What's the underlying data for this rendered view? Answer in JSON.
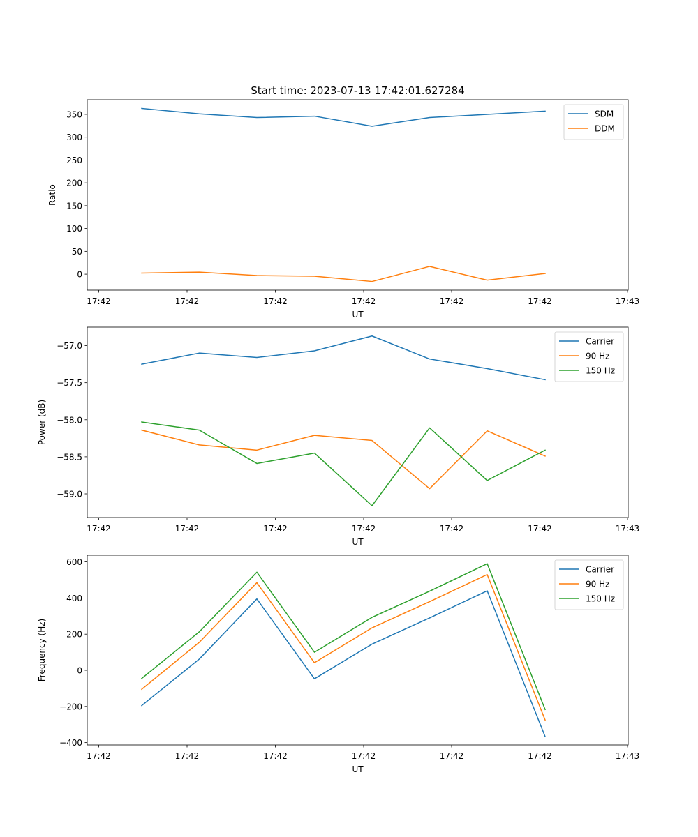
{
  "chart_data": [
    {
      "type": "line",
      "title": "Start time: 2023-07-13 17:42:01.627284",
      "xlabel": "UT",
      "ylabel": "Ratio",
      "xtick_labels": [
        "17:42",
        "17:42",
        "17:42",
        "17:42",
        "17:42",
        "17:42",
        "17:43"
      ],
      "ylim": [
        -35,
        382
      ],
      "yticks": [
        0,
        50,
        100,
        150,
        200,
        250,
        300,
        350
      ],
      "ytick_labels": [
        "0",
        "50",
        "100",
        "150",
        "200",
        "250",
        "300",
        "350"
      ],
      "legend_position": "top-right",
      "x": [
        1,
        2,
        3,
        4,
        5,
        6,
        7,
        8
      ],
      "series": [
        {
          "name": "SDM",
          "color": "#1f77b4",
          "values": [
            363,
            351,
            343,
            346,
            324,
            343,
            350,
            357
          ]
        },
        {
          "name": "DDM",
          "color": "#ff7f0e",
          "values": [
            2.5,
            4.5,
            -3,
            -4.5,
            -16,
            17,
            -13,
            1.5
          ]
        }
      ]
    },
    {
      "type": "line",
      "title": "",
      "xlabel": "UT",
      "ylabel": "Power (dB)",
      "xtick_labels": [
        "17:42",
        "17:42",
        "17:42",
        "17:42",
        "17:42",
        "17:42",
        "17:43"
      ],
      "ylim": [
        -59.32,
        -56.75
      ],
      "yticks": [
        -59.0,
        -58.5,
        -58.0,
        -57.5,
        -57.0
      ],
      "ytick_labels": [
        "−59.0",
        "−58.5",
        "−58.0",
        "−57.5",
        "−57.0"
      ],
      "legend_position": "top-right",
      "x": [
        1,
        2,
        3,
        4,
        5,
        6,
        7,
        8
      ],
      "series": [
        {
          "name": "Carrier",
          "color": "#1f77b4",
          "values": [
            -57.25,
            -57.1,
            -57.16,
            -57.07,
            -56.87,
            -57.18,
            -57.31,
            -57.46
          ]
        },
        {
          "name": "90 Hz",
          "color": "#ff7f0e",
          "values": [
            -58.14,
            -58.34,
            -58.41,
            -58.21,
            -58.28,
            -58.93,
            -58.15,
            -58.49
          ]
        },
        {
          "name": "150 Hz",
          "color": "#2ca02c",
          "values": [
            -58.03,
            -58.14,
            -58.59,
            -58.45,
            -59.16,
            -58.11,
            -58.82,
            -58.41
          ]
        }
      ]
    },
    {
      "type": "line",
      "title": "",
      "xlabel": "UT",
      "ylabel": "Frequency (Hz)",
      "xtick_labels": [
        "17:42",
        "17:42",
        "17:42",
        "17:42",
        "17:42",
        "17:42",
        "17:43"
      ],
      "ylim": [
        -413,
        637
      ],
      "yticks": [
        -400,
        -200,
        0,
        200,
        400,
        600
      ],
      "ytick_labels": [
        "−400",
        "−200",
        "0",
        "200",
        "400",
        "600"
      ],
      "legend_position": "top-right",
      "x": [
        1,
        2,
        3,
        4,
        5,
        6,
        7,
        8
      ],
      "series": [
        {
          "name": "Carrier",
          "color": "#1f77b4",
          "values": [
            -195,
            62,
            395,
            -47,
            145,
            290,
            440,
            -367
          ]
        },
        {
          "name": "90 Hz",
          "color": "#ff7f0e",
          "values": [
            -105,
            155,
            485,
            42,
            235,
            380,
            530,
            -275
          ]
        },
        {
          "name": "150 Hz",
          "color": "#2ca02c",
          "values": [
            -45,
            213,
            543,
            100,
            293,
            438,
            590,
            -217
          ]
        }
      ]
    }
  ]
}
